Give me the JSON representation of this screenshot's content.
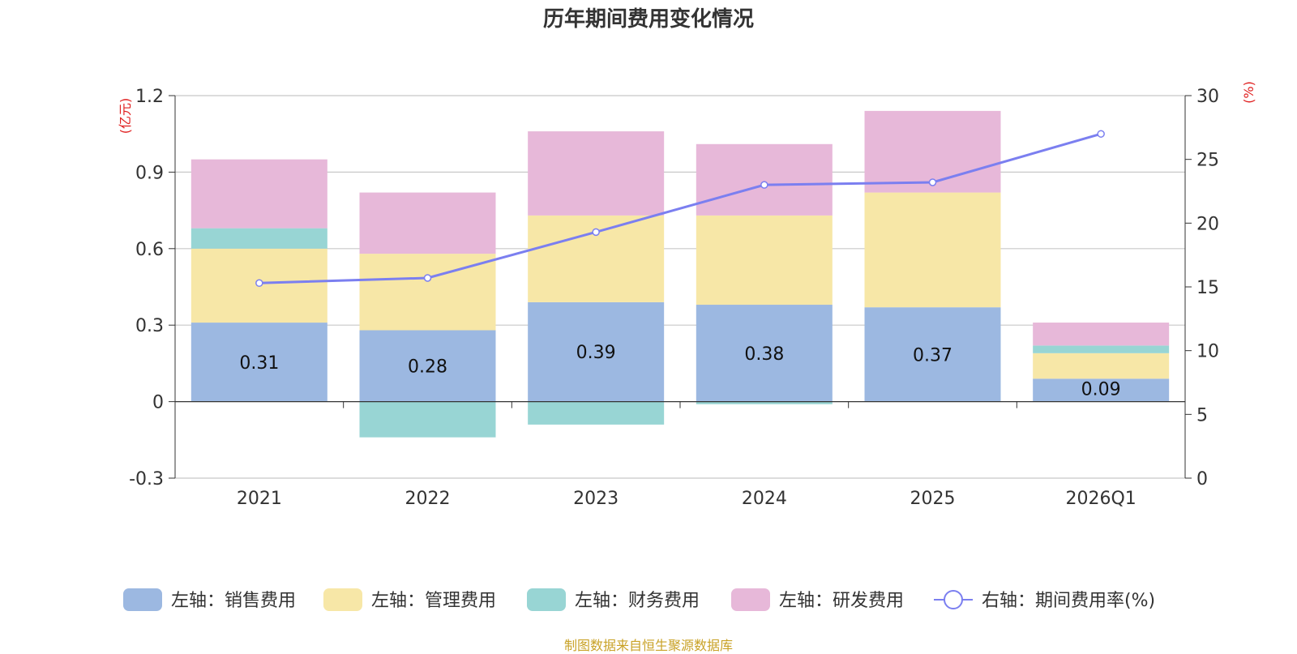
{
  "chart_data": {
    "type": "bar",
    "title": "历年期间费用变化情况",
    "stacked": true,
    "categories": [
      "2021",
      "2022",
      "2023",
      "2024",
      "2025",
      "2026Q1"
    ],
    "left_axis": {
      "unit_label": "(亿元)",
      "ylim": [
        -0.3,
        1.2
      ],
      "ticks": [
        -0.3,
        0,
        0.3,
        0.6,
        0.9,
        1.2
      ]
    },
    "right_axis": {
      "unit_label": "(%)",
      "ylim": [
        0,
        30
      ],
      "ticks": [
        0,
        5,
        10,
        15,
        20,
        25,
        30
      ]
    },
    "series": [
      {
        "name": "左轴：销售费用",
        "axis": "left",
        "color": "#9cb8e1",
        "values": [
          0.31,
          0.28,
          0.39,
          0.38,
          0.37,
          0.09
        ]
      },
      {
        "name": "左轴：管理费用",
        "axis": "left",
        "color": "#f7e7a7",
        "values": [
          0.29,
          0.3,
          0.34,
          0.35,
          0.45,
          0.1
        ]
      },
      {
        "name": "左轴：财务费用",
        "axis": "left",
        "color": "#98d5d4",
        "values": [
          0.08,
          -0.14,
          -0.09,
          -0.01,
          0.0,
          0.03
        ]
      },
      {
        "name": "左轴：研发费用",
        "axis": "left",
        "color": "#e7b8d9",
        "values": [
          0.27,
          0.24,
          0.33,
          0.28,
          0.32,
          0.09
        ]
      }
    ],
    "line_series": {
      "name": "右轴：期间费用率(%)",
      "axis": "right",
      "color": "#7b7ff0",
      "values": [
        15.3,
        15.7,
        19.3,
        23.0,
        23.2,
        27.0
      ]
    },
    "data_labels": [
      "0.31",
      "0.28",
      "0.39",
      "0.38",
      "0.37",
      "0.09"
    ],
    "legend_position": "bottom"
  },
  "source_text": "制图数据来自恒生聚源数据库"
}
